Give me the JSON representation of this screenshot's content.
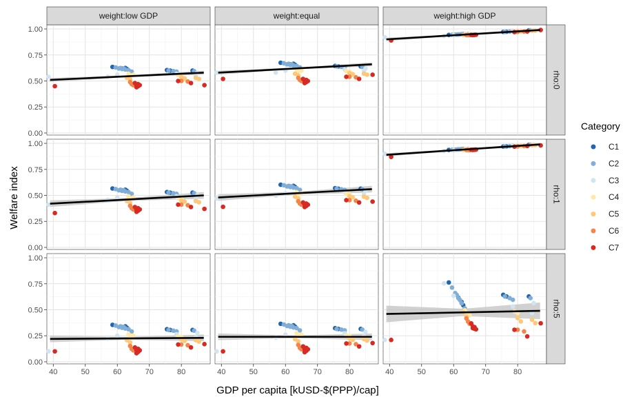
{
  "chart_data": {
    "type": "scatter",
    "xlabel": "GDP per capita [kUSD-$(PPP)/cap]",
    "ylabel": "Welfare index",
    "xlim": [
      38,
      89
    ],
    "ylim": [
      -0.02,
      1.04
    ],
    "x_ticks": [
      40,
      50,
      60,
      70,
      80
    ],
    "x_tick_labels": [
      "40",
      "50",
      "60",
      "70",
      "80"
    ],
    "y_ticks": [
      0,
      0.25,
      0.5,
      0.75,
      1
    ],
    "y_tick_labels": [
      "0.00",
      "0.25",
      "0.50",
      "0.75",
      "1.00"
    ],
    "grid": true,
    "legend": {
      "title": "Category",
      "position": "right",
      "entries": [
        {
          "name": "C1",
          "color": "#2166ac"
        },
        {
          "name": "C2",
          "color": "#80aed6"
        },
        {
          "name": "C3",
          "color": "#d1e5f0"
        },
        {
          "name": "C4",
          "color": "#fee9a8"
        },
        {
          "name": "C5",
          "color": "#fdc877"
        },
        {
          "name": "C6",
          "color": "#f4854a"
        },
        {
          "name": "C7",
          "color": "#d62a22"
        }
      ]
    },
    "columns": [
      "weight:low GDP",
      "weight:equal",
      "weight:high GDP"
    ],
    "rows": [
      "rho:0",
      "rho:1",
      "rho:5"
    ],
    "panels": [
      {
        "col": 0,
        "row": 0,
        "base": 0.56,
        "spread": 1.0,
        "x_mid": 63,
        "trend": [
          [
            39,
            0.51
          ],
          [
            87,
            0.58
          ]
        ],
        "band": 0.012,
        "extreme": [
          0.54,
          0.45,
          0.46
        ]
      },
      {
        "col": 1,
        "row": 0,
        "base": 0.6,
        "spread": 1.0,
        "x_mid": 63,
        "trend": [
          [
            39,
            0.58
          ],
          [
            87,
            0.66
          ]
        ],
        "band": 0.012,
        "extreme": [
          0.58,
          0.52,
          0.56
        ]
      },
      {
        "col": 2,
        "row": 0,
        "base": 0.96,
        "spread": 0.12,
        "x_mid": 63,
        "trend": [
          [
            39,
            0.9
          ],
          [
            87,
            0.99
          ]
        ],
        "band": 0.01,
        "extreme": [
          0.92,
          0.89,
          0.99
        ]
      },
      {
        "col": 0,
        "row": 1,
        "base": 0.48,
        "spread": 1.15,
        "x_mid": 63,
        "trend": [
          [
            39,
            0.42
          ],
          [
            87,
            0.5
          ]
        ],
        "band": 0.02,
        "extreme": [
          0.41,
          0.33,
          0.37
        ]
      },
      {
        "col": 1,
        "row": 1,
        "base": 0.52,
        "spread": 1.1,
        "x_mid": 63,
        "trend": [
          [
            39,
            0.48
          ],
          [
            87,
            0.56
          ]
        ],
        "band": 0.02,
        "extreme": [
          0.47,
          0.39,
          0.44
        ]
      },
      {
        "col": 2,
        "row": 1,
        "base": 0.95,
        "spread": 0.15,
        "x_mid": 63,
        "trend": [
          [
            39,
            0.89
          ],
          [
            87,
            0.99
          ]
        ],
        "band": 0.01,
        "extreme": [
          0.9,
          0.87,
          0.98
        ]
      },
      {
        "col": 0,
        "row": 2,
        "base": 0.25,
        "spread": 1.4,
        "x_mid": 63,
        "trend": [
          [
            39,
            0.22
          ],
          [
            87,
            0.23
          ]
        ],
        "band": 0.02,
        "extreme": [
          0.1,
          0.1,
          0.17
        ]
      },
      {
        "col": 1,
        "row": 2,
        "base": 0.26,
        "spread": 1.4,
        "x_mid": 63,
        "trend": [
          [
            39,
            0.24
          ],
          [
            87,
            0.24
          ]
        ],
        "band": 0.02,
        "extreme": [
          0.1,
          0.1,
          0.18
        ]
      },
      {
        "col": 2,
        "row": 2,
        "base": 0.5,
        "spread": 3.2,
        "x_mid": 63,
        "trend": [
          [
            39,
            0.46
          ],
          [
            87,
            0.49
          ]
        ],
        "band": 0.05,
        "extreme": [
          0.21,
          0.21,
          0.37
        ]
      }
    ],
    "clusters": [
      {
        "cat": 0,
        "x": [
          58.5,
          61.5,
          62.5,
          63.0,
          75.5,
          76.5,
          83.5
        ],
        "dy": [
          0.075,
          0.06,
          0.065,
          0.055,
          0.045,
          0.04,
          0.04
        ]
      },
      {
        "cat": 1,
        "x": [
          59.5,
          60.5,
          61.0,
          61.5,
          62.0,
          62.5,
          63.5,
          64.5,
          76.0,
          77.5,
          78.5,
          84.0
        ],
        "dy": [
          0.07,
          0.06,
          0.065,
          0.055,
          0.06,
          0.05,
          0.045,
          0.03,
          0.04,
          0.035,
          0.03,
          0.035
        ]
      },
      {
        "cat": 2,
        "x": [
          57.0,
          60.0,
          78.5,
          84.5,
          85.0
        ],
        "dy": [
          -0.02,
          0.0,
          0.01,
          -0.01,
          0.02
        ]
      },
      {
        "cat": 3,
        "x": [
          63.5,
          64.0,
          65.0,
          79.0,
          80.0
        ],
        "dy": [
          0.01,
          -0.005,
          0.0,
          -0.005,
          -0.01
        ]
      },
      {
        "cat": 4,
        "x": [
          63.0,
          64.0,
          80.0,
          81.0,
          84.5,
          85.5
        ],
        "dy": [
          -0.03,
          -0.045,
          -0.025,
          -0.035,
          -0.03,
          -0.04
        ]
      },
      {
        "cat": 5,
        "x": [
          64.0,
          64.5,
          65.0,
          65.5,
          80.0,
          82.0
        ],
        "dy": [
          -0.07,
          -0.09,
          -0.1,
          -0.085,
          -0.06,
          -0.065
        ]
      },
      {
        "cat": 6,
        "x": [
          65.5,
          66.0,
          66.0,
          66.5,
          66.5,
          67.0,
          79.0,
          83.0
        ],
        "dy": [
          -0.08,
          -0.1,
          -0.12,
          -0.09,
          -0.11,
          -0.1,
          -0.06,
          -0.08
        ]
      }
    ],
    "extreme_x": [
      38.5,
      40.5,
      87.2
    ],
    "extreme_cat": [
      2,
      6,
      6
    ]
  }
}
